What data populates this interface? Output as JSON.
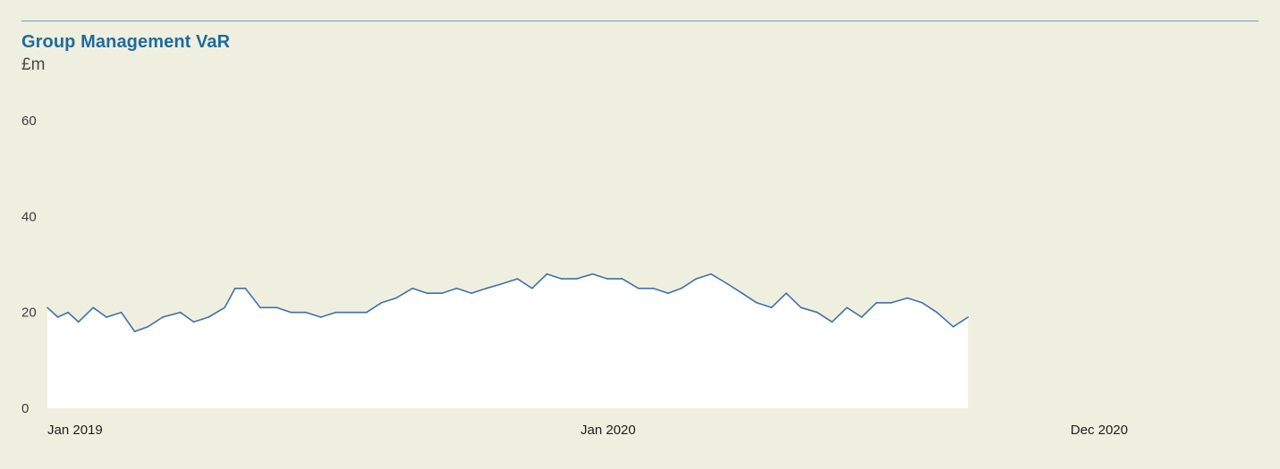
{
  "header": {
    "title": "Group Management VaR",
    "unit": "£m"
  },
  "colors": {
    "background": "#efefdf",
    "line": "#3f6fae",
    "fill": "#ffffff",
    "title": "#1f6b9c",
    "rule": "#6c9fc0"
  },
  "chart_data": {
    "type": "area",
    "title": "Group Management VaR",
    "ylabel": "£m",
    "xlabel": "",
    "ylim": [
      0,
      60
    ],
    "yticks": [
      0,
      20,
      40,
      60
    ],
    "xlim": [
      "2019-01-01",
      "2020-12-31"
    ],
    "xticks": [
      {
        "label": "Jan 2019",
        "date": "2019-01-01"
      },
      {
        "label": "Jan 2020",
        "date": "2020-01-01"
      },
      {
        "label": "Dec 2020",
        "date": "2020-12-31"
      }
    ],
    "grid": false,
    "series": [
      {
        "points": [
          [
            "2019-01-01",
            21
          ],
          [
            "2019-01-08",
            19
          ],
          [
            "2019-01-15",
            20
          ],
          [
            "2019-01-22",
            18
          ],
          [
            "2019-02-01",
            21
          ],
          [
            "2019-02-10",
            19
          ],
          [
            "2019-02-20",
            20
          ],
          [
            "2019-03-01",
            16
          ],
          [
            "2019-03-10",
            17
          ],
          [
            "2019-03-20",
            19
          ],
          [
            "2019-04-01",
            20
          ],
          [
            "2019-04-10",
            18
          ],
          [
            "2019-04-20",
            19
          ],
          [
            "2019-05-01",
            21
          ],
          [
            "2019-05-08",
            25
          ],
          [
            "2019-05-15",
            25
          ],
          [
            "2019-05-25",
            21
          ],
          [
            "2019-06-05",
            21
          ],
          [
            "2019-06-15",
            20
          ],
          [
            "2019-06-25",
            20
          ],
          [
            "2019-07-05",
            19
          ],
          [
            "2019-07-15",
            20
          ],
          [
            "2019-07-25",
            20
          ],
          [
            "2019-08-05",
            20
          ],
          [
            "2019-08-15",
            22
          ],
          [
            "2019-08-25",
            23
          ],
          [
            "2019-09-05",
            25
          ],
          [
            "2019-09-15",
            24
          ],
          [
            "2019-09-25",
            24
          ],
          [
            "2019-10-05",
            25
          ],
          [
            "2019-10-15",
            24
          ],
          [
            "2019-10-25",
            25
          ],
          [
            "2019-11-05",
            26
          ],
          [
            "2019-11-15",
            27
          ],
          [
            "2019-11-25",
            25
          ],
          [
            "2019-12-05",
            28
          ],
          [
            "2019-12-15",
            27
          ],
          [
            "2019-12-25",
            27
          ],
          [
            "2020-01-05",
            28
          ],
          [
            "2020-01-15",
            27
          ],
          [
            "2020-01-25",
            27
          ],
          [
            "2020-02-05",
            25
          ],
          [
            "2020-02-15",
            25
          ],
          [
            "2020-02-25",
            24
          ],
          [
            "2020-03-05",
            25
          ],
          [
            "2020-03-15",
            27
          ],
          [
            "2020-03-25",
            28
          ],
          [
            "2020-04-05",
            26
          ],
          [
            "2020-04-15",
            24
          ],
          [
            "2020-04-25",
            22
          ],
          [
            "2020-05-05",
            21
          ],
          [
            "2020-05-15",
            24
          ],
          [
            "2020-05-25",
            21
          ],
          [
            "2020-06-05",
            20
          ],
          [
            "2020-06-15",
            18
          ],
          [
            "2020-06-25",
            21
          ],
          [
            "2020-07-05",
            19
          ],
          [
            "2020-07-15",
            22
          ],
          [
            "2020-07-25",
            22
          ],
          [
            "2020-08-05",
            23
          ],
          [
            "2020-08-15",
            22
          ],
          [
            "2020-08-25",
            20
          ],
          [
            "2020-09-05",
            17
          ],
          [
            "2020-09-15",
            19
          ]
        ]
      }
    ]
  }
}
